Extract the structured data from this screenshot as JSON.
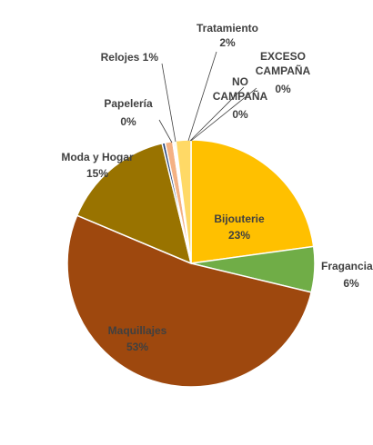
{
  "chart_data": {
    "type": "pie",
    "title": "",
    "slices": [
      {
        "label": "Bijouterie",
        "value": 23,
        "display": "23%",
        "color": "#ffc000"
      },
      {
        "label": "Fragancias",
        "value": 6,
        "display": "6%",
        "color": "#70ad47"
      },
      {
        "label": "Maquillajes",
        "value": 53,
        "display": "53%",
        "color": "#9e480e"
      },
      {
        "label": "Moda y Hogar",
        "value": 15,
        "display": "15%",
        "color": "#997300"
      },
      {
        "label": "Papelería",
        "value": 0.4,
        "display": "0%",
        "color": "#264478"
      },
      {
        "label": "Relojes",
        "value": 1,
        "display": "1%",
        "color": "#f4b183"
      },
      {
        "label": "NO CAMPAÑA",
        "value": 0.2,
        "display": "0%",
        "color": "#bdd7ee"
      },
      {
        "label": "EXCESO CAMPAÑA",
        "value": 0.2,
        "display": "0%",
        "color": "#a9d18e"
      },
      {
        "label": "Tratamiento",
        "value": 2,
        "display": "2%",
        "color": "#ffd966"
      }
    ]
  }
}
